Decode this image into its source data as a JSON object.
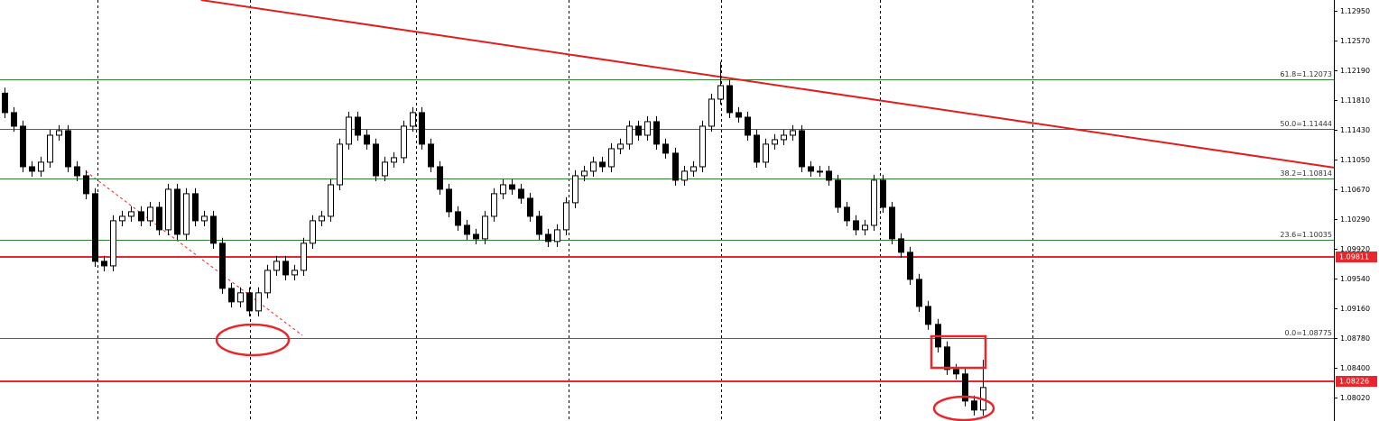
{
  "chart_data": {
    "type": "candlestick",
    "categories": [
      null,
      null,
      null,
      null,
      null,
      null,
      null,
      null,
      null,
      null,
      null,
      null,
      null,
      null,
      null,
      null,
      null,
      null,
      null,
      null,
      null,
      null,
      null,
      null,
      null,
      null,
      null,
      null,
      null,
      null,
      null,
      null,
      null,
      null,
      null,
      null,
      null,
      null,
      null,
      null,
      null,
      null,
      null,
      null,
      null,
      null,
      null,
      null,
      null,
      null,
      null,
      null,
      null,
      null,
      null,
      null,
      null,
      null,
      null,
      null,
      null,
      null,
      null,
      null,
      null,
      null,
      null,
      null,
      null,
      null,
      null,
      null,
      null,
      null,
      null,
      null,
      null,
      null,
      null,
      null,
      null,
      null,
      null,
      null,
      null,
      null,
      null,
      null,
      null,
      null,
      null,
      null,
      null,
      null,
      null,
      null,
      null,
      null,
      null,
      null,
      null,
      null,
      null,
      null,
      null,
      null,
      null,
      null,
      null
    ],
    "open": [
      1.119,
      1.11652,
      1.11479,
      1.10962,
      1.10905,
      1.1102,
      1.11364,
      1.11422,
      1.10962,
      1.10847,
      1.10618,
      1.09756,
      1.09698,
      1.10273,
      1.1033,
      1.10388,
      1.10273,
      1.10445,
      1.10158,
      1.10675,
      1.101,
      1.10618,
      1.10273,
      1.1033,
      1.09986,
      1.09411,
      1.09239,
      1.09354,
      1.09124,
      1.09354,
      1.09641,
      1.09756,
      1.09583,
      1.09641,
      1.09986,
      1.10273,
      1.1033,
      1.10732,
      1.1125,
      1.11594,
      1.11364,
      1.1125,
      1.10847,
      1.1102,
      1.11077,
      1.11479,
      1.11652,
      1.1125,
      1.10962,
      1.10675,
      1.10388,
      1.10215,
      1.101,
      1.10043,
      1.1033,
      1.10618,
      1.10732,
      1.10675,
      1.1056,
      1.1033,
      1.101,
      1.10009,
      1.10158,
      1.10503,
      1.10847,
      1.10905,
      1.1102,
      1.10962,
      1.11192,
      1.1125,
      1.11479,
      1.11364,
      1.11537,
      1.1125,
      1.11135,
      1.1079,
      1.10905,
      1.10962,
      1.11479,
      1.11824,
      1.11996,
      1.11652,
      1.11594,
      1.11364,
      1.1102,
      1.1125,
      1.11307,
      1.11364,
      1.11422,
      1.10962,
      1.10905,
      1.10905,
      1.1079,
      1.10445,
      1.10273,
      1.10158,
      1.10215,
      1.1079,
      1.10445,
      1.10043,
      1.09871,
      1.09526,
      1.09181,
      1.08952,
      1.08664,
      1.08377,
      1.0832,
      1.07975,
      1.0786
    ],
    "high": [
      1.1197,
      1.11722,
      1.11549,
      1.11032,
      1.1109,
      1.11434,
      1.11492,
      1.11492,
      1.11032,
      1.10917,
      1.10688,
      1.09826,
      1.10343,
      1.104,
      1.10458,
      1.10458,
      1.10515,
      1.10515,
      1.10745,
      1.10745,
      1.10688,
      1.10688,
      1.104,
      1.104,
      1.10056,
      1.09481,
      1.09424,
      1.09424,
      1.09424,
      1.09711,
      1.09826,
      1.09826,
      1.09711,
      1.10056,
      1.10343,
      1.104,
      1.10802,
      1.1132,
      1.11664,
      1.11664,
      1.11434,
      1.1132,
      1.1109,
      1.11147,
      1.11549,
      1.11722,
      1.11722,
      1.1132,
      1.11032,
      1.10745,
      1.10458,
      1.10285,
      1.1017,
      1.104,
      1.10688,
      1.10802,
      1.10802,
      1.10745,
      1.1063,
      1.104,
      1.1017,
      1.10228,
      1.10573,
      1.10917,
      1.10975,
      1.1109,
      1.1109,
      1.11262,
      1.1132,
      1.11549,
      1.11549,
      1.11607,
      1.11607,
      1.1132,
      1.11205,
      1.10975,
      1.11032,
      1.11549,
      1.11894,
      1.123,
      1.12066,
      1.11722,
      1.11664,
      1.11434,
      1.1132,
      1.11377,
      1.11434,
      1.11492,
      1.11492,
      1.11032,
      1.10975,
      1.10975,
      1.1086,
      1.10515,
      1.10343,
      1.10285,
      1.1086,
      1.1086,
      1.10515,
      1.10113,
      1.09941,
      1.09596,
      1.09251,
      1.09022,
      1.08734,
      1.08447,
      1.0839,
      1.08045,
      1.085
    ],
    "low": [
      1.11582,
      1.11409,
      1.10892,
      1.10835,
      1.10835,
      1.1095,
      1.11294,
      1.10892,
      1.10777,
      1.10548,
      1.09686,
      1.09628,
      1.09628,
      1.10203,
      1.1026,
      1.10203,
      1.10203,
      1.10088,
      1.10088,
      1.1003,
      1.1003,
      1.10203,
      1.10203,
      1.09916,
      1.09341,
      1.09169,
      1.09169,
      1.09054,
      1.09054,
      1.09284,
      1.09571,
      1.09513,
      1.09513,
      1.09571,
      1.09916,
      1.10203,
      1.1026,
      1.10662,
      1.1118,
      1.11294,
      1.1118,
      1.10777,
      1.10777,
      1.1095,
      1.11007,
      1.11409,
      1.1118,
      1.10892,
      1.10605,
      1.10318,
      1.10145,
      1.1003,
      1.09973,
      1.09973,
      1.1026,
      1.10548,
      1.10605,
      1.1049,
      1.1026,
      1.1003,
      1.09939,
      1.09939,
      1.10088,
      1.10433,
      1.10777,
      1.10835,
      1.10892,
      1.10892,
      1.11122,
      1.1118,
      1.11294,
      1.11294,
      1.1118,
      1.11065,
      1.1072,
      1.1072,
      1.10835,
      1.10892,
      1.11409,
      1.11754,
      1.11582,
      1.11524,
      1.11294,
      1.1095,
      1.1095,
      1.1118,
      1.11237,
      1.11294,
      1.10892,
      1.10835,
      1.10835,
      1.1072,
      1.10375,
      1.10203,
      1.10088,
      1.10088,
      1.10145,
      1.10375,
      1.09973,
      1.09801,
      1.09456,
      1.09111,
      1.08882,
      1.08594,
      1.08307,
      1.0825,
      1.07905,
      1.0779,
      1.0779
    ],
    "close": [
      1.11652,
      1.11479,
      1.10962,
      1.10905,
      1.1102,
      1.11364,
      1.11422,
      1.10962,
      1.10847,
      1.10618,
      1.09756,
      1.09698,
      1.10273,
      1.1033,
      1.10388,
      1.10273,
      1.10445,
      1.10158,
      1.10675,
      1.101,
      1.10618,
      1.10273,
      1.1033,
      1.09986,
      1.09411,
      1.09239,
      1.09354,
      1.09124,
      1.09354,
      1.09641,
      1.09756,
      1.09583,
      1.09641,
      1.09986,
      1.10273,
      1.1033,
      1.10732,
      1.1125,
      1.11594,
      1.11364,
      1.1125,
      1.10847,
      1.1102,
      1.11077,
      1.11479,
      1.11652,
      1.1125,
      1.10962,
      1.10675,
      1.10388,
      1.10215,
      1.101,
      1.10043,
      1.1033,
      1.10618,
      1.10732,
      1.10675,
      1.1056,
      1.1033,
      1.101,
      1.10009,
      1.10158,
      1.10503,
      1.10847,
      1.10905,
      1.1102,
      1.10962,
      1.11192,
      1.1125,
      1.11479,
      1.11364,
      1.11537,
      1.1125,
      1.11135,
      1.1079,
      1.10905,
      1.10962,
      1.11479,
      1.11824,
      1.11996,
      1.11652,
      1.11594,
      1.11364,
      1.1102,
      1.1125,
      1.11307,
      1.11364,
      1.11422,
      1.10962,
      1.10905,
      1.10905,
      1.1079,
      1.10445,
      1.10273,
      1.10158,
      1.10215,
      1.1079,
      1.10445,
      1.10043,
      1.09871,
      1.09526,
      1.09181,
      1.08952,
      1.08664,
      1.08377,
      1.0832,
      1.07975,
      1.0786,
      1.08147
    ],
    "up_color": "#ffffff",
    "down_color": "#000000",
    "xlim": [
      -0.5,
      146.8
    ],
    "ylim": [
      1.0772,
      1.13088
    ],
    "yticks": [
      {
        "value": 1.1295,
        "label": "1.12950"
      },
      {
        "value": 1.1257,
        "label": "1.12570"
      },
      {
        "value": 1.1219,
        "label": "1.12190"
      },
      {
        "value": 1.1181,
        "label": "1.11810"
      },
      {
        "value": 1.1143,
        "label": "1.11430"
      },
      {
        "value": 1.1105,
        "label": "1.11050"
      },
      {
        "value": 1.1067,
        "label": "1.10670"
      },
      {
        "value": 1.1029,
        "label": "1.10290"
      },
      {
        "value": 1.0992,
        "label": "1.09920"
      },
      {
        "value": 1.0954,
        "label": "1.09540"
      },
      {
        "value": 1.0916,
        "label": "1.09160"
      },
      {
        "value": 1.0878,
        "label": "1.08780"
      },
      {
        "value": 1.084,
        "label": "1.08400"
      },
      {
        "value": 1.0802,
        "label": "1.08020"
      }
    ],
    "fib_levels": [
      {
        "value": 1.12073,
        "label": "61.8=1.12073"
      },
      {
        "value": 1.11444,
        "label": "50.0=1.11444"
      },
      {
        "value": 1.10814,
        "label": "38.2=1.10814"
      },
      {
        "value": 1.10035,
        "label": "23.6=1.10035"
      },
      {
        "value": 1.08775,
        "label": "0.0=1.08775"
      }
    ],
    "fib_color": "#2e7d32",
    "price_lines": [
      1.09811,
      1.08226
    ],
    "price_line_color": "#e8262b",
    "trendline": {
      "x": [
        21.7,
        146.8
      ],
      "y": [
        1.13088,
        1.10951
      ]
    },
    "separators": [
      10.3,
      27.1,
      45.4,
      62.3,
      79.1,
      96.7,
      113.5
    ]
  }
}
